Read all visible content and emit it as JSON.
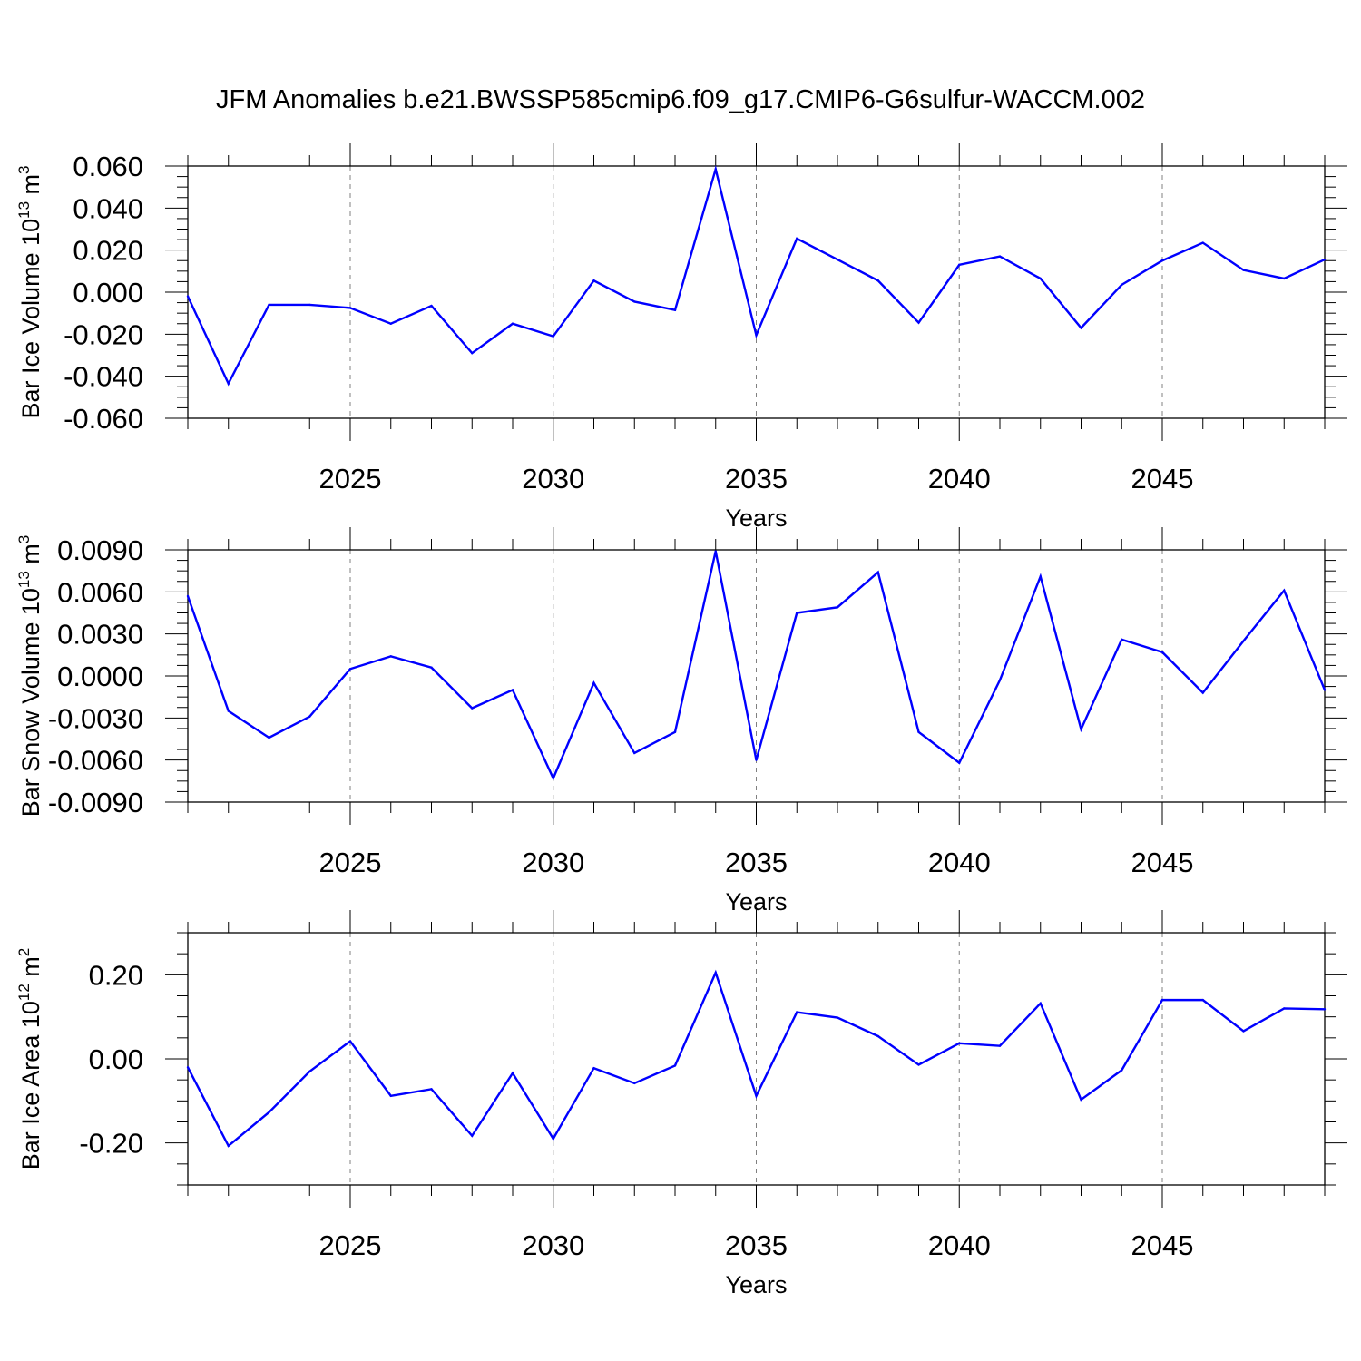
{
  "title": "JFM Anomalies b.e21.BWSSP585cmip6.f09_g17.CMIP6-G6sulfur-WACCM.002",
  "chart_data": [
    {
      "type": "line",
      "ylabel": "Bar Ice Volume 10",
      "ylabel_sup": "13",
      "ylabel_unit": " m",
      "ylabel_unit_sup": "3",
      "xlabel": "Years",
      "xlim": [
        2021,
        2049
      ],
      "ylim": [
        -0.06,
        0.06
      ],
      "yticks": [
        -0.06,
        -0.04,
        -0.02,
        0.0,
        0.02,
        0.04,
        0.06
      ],
      "ytick_labels": [
        "-0.060",
        "-0.040",
        "-0.020",
        "0.000",
        "0.020",
        "0.040",
        "0.060"
      ],
      "yminor_step": 0.005,
      "xticks": [
        2025,
        2030,
        2035,
        2040,
        2045
      ],
      "xtick_labels": [
        "2025",
        "2030",
        "2035",
        "2040",
        "2045"
      ],
      "grid": "dashed vertical at labeled years",
      "line_color": "#0000ff",
      "x": [
        2021,
        2022,
        2023,
        2024,
        2025,
        2026,
        2027,
        2028,
        2029,
        2030,
        2031,
        2032,
        2033,
        2034,
        2035,
        2036,
        2037,
        2038,
        2039,
        2040,
        2041,
        2042,
        2043,
        2044,
        2045,
        2046,
        2047,
        2048,
        2049
      ],
      "values": [
        -0.002,
        -0.0435,
        -0.006,
        -0.006,
        -0.0075,
        -0.015,
        -0.0065,
        -0.029,
        -0.015,
        -0.021,
        0.0055,
        -0.0045,
        -0.0085,
        0.0585,
        -0.0205,
        0.0255,
        0.0155,
        0.0055,
        -0.0145,
        0.013,
        0.017,
        0.0065,
        -0.017,
        0.0035,
        0.015,
        0.0235,
        0.0105,
        0.0065,
        0.0155
      ]
    },
    {
      "type": "line",
      "ylabel": "Bar Snow Volume 10",
      "ylabel_sup": "13",
      "ylabel_unit": " m",
      "ylabel_unit_sup": "3",
      "xlabel": "Years",
      "xlim": [
        2021,
        2049
      ],
      "ylim": [
        -0.009,
        0.009
      ],
      "yticks": [
        -0.009,
        -0.006,
        -0.003,
        0.0,
        0.003,
        0.006,
        0.009
      ],
      "ytick_labels": [
        "-0.0090",
        "-0.0060",
        "-0.0030",
        "0.0000",
        "0.0030",
        "0.0060",
        "0.0090"
      ],
      "yminor_step": 0.00075,
      "xticks": [
        2025,
        2030,
        2035,
        2040,
        2045
      ],
      "xtick_labels": [
        "2025",
        "2030",
        "2035",
        "2040",
        "2045"
      ],
      "grid": "dashed vertical at labeled years",
      "line_color": "#0000ff",
      "x": [
        2021,
        2022,
        2023,
        2024,
        2025,
        2026,
        2027,
        2028,
        2029,
        2030,
        2031,
        2032,
        2033,
        2034,
        2035,
        2036,
        2037,
        2038,
        2039,
        2040,
        2041,
        2042,
        2043,
        2044,
        2045,
        2046,
        2047,
        2048,
        2049
      ],
      "values": [
        0.0057,
        -0.0025,
        -0.0044,
        -0.0029,
        0.0005,
        0.0014,
        0.0006,
        -0.0023,
        -0.001,
        -0.0073,
        -0.0005,
        -0.0055,
        -0.004,
        0.0089,
        -0.006,
        0.0045,
        0.0049,
        0.0074,
        -0.004,
        -0.0062,
        -0.0003,
        0.0071,
        -0.0038,
        0.0026,
        0.0017,
        -0.0012,
        0.0025,
        0.0061,
        -0.001
      ]
    },
    {
      "type": "line",
      "ylabel": "Bar Ice Area 10",
      "ylabel_sup": "12",
      "ylabel_unit": " m",
      "ylabel_unit_sup": "2",
      "xlabel": "Years",
      "xlim": [
        2021,
        2049
      ],
      "ylim": [
        -0.3,
        0.3
      ],
      "yticks": [
        -0.2,
        0.0,
        0.2
      ],
      "ytick_labels": [
        "-0.20",
        "0.00",
        "0.20"
      ],
      "yminor_step": 0.05,
      "xticks": [
        2025,
        2030,
        2035,
        2040,
        2045
      ],
      "xtick_labels": [
        "2025",
        "2030",
        "2035",
        "2040",
        "2045"
      ],
      "grid": "dashed vertical at labeled years",
      "line_color": "#0000ff",
      "x": [
        2021,
        2022,
        2023,
        2024,
        2025,
        2026,
        2027,
        2028,
        2029,
        2030,
        2031,
        2032,
        2033,
        2034,
        2035,
        2036,
        2037,
        2038,
        2039,
        2040,
        2041,
        2042,
        2043,
        2044,
        2045,
        2046,
        2047,
        2048,
        2049
      ],
      "values": [
        -0.02,
        -0.207,
        -0.127,
        -0.03,
        0.042,
        -0.088,
        -0.072,
        -0.183,
        -0.034,
        -0.19,
        -0.022,
        -0.058,
        -0.016,
        0.205,
        -0.088,
        0.111,
        0.098,
        0.054,
        -0.014,
        0.037,
        0.031,
        0.132,
        -0.097,
        -0.027,
        0.14,
        0.14,
        0.066,
        0.12,
        0.118
      ]
    }
  ]
}
